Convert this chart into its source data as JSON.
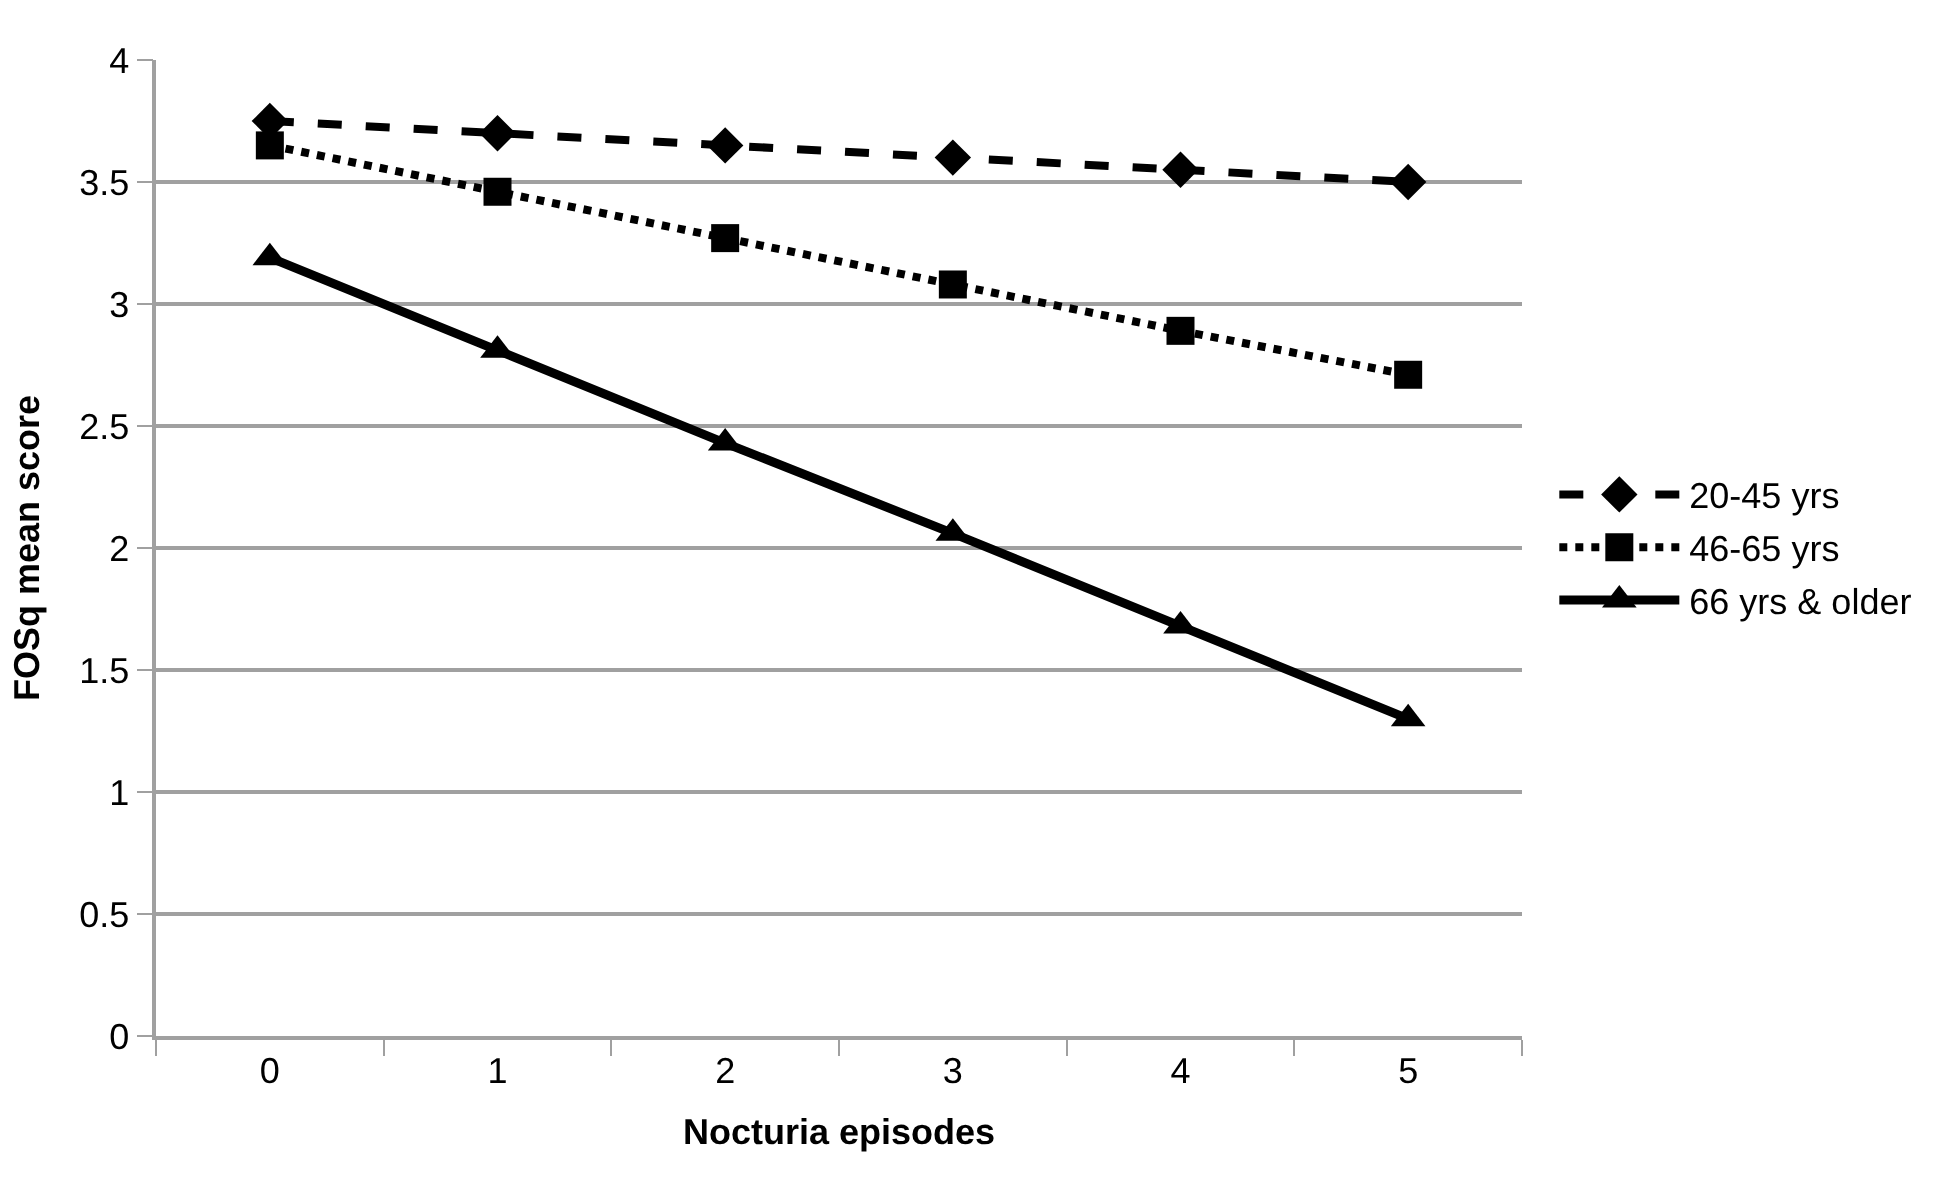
{
  "chart_data": {
    "type": "line",
    "xlabel": "Nocturia episodes",
    "ylabel": "FOSq mean score",
    "categories": [
      "0",
      "1",
      "2",
      "3",
      "4",
      "5"
    ],
    "series": [
      {
        "name": "20-45 yrs",
        "color": "#000000",
        "marker": "diamond",
        "line_style": "dashed",
        "values": [
          3.75,
          3.7,
          3.65,
          3.6,
          3.55,
          3.5
        ]
      },
      {
        "name": "46-65 yrs",
        "color": "#000000",
        "marker": "square",
        "line_style": "dotted",
        "values": [
          3.65,
          3.46,
          3.27,
          3.08,
          2.89,
          2.71
        ]
      },
      {
        "name": "66 yrs & older",
        "color": "#000000",
        "marker": "triangle",
        "line_style": "solid",
        "values": [
          3.19,
          2.81,
          2.43,
          2.06,
          1.68,
          1.3
        ]
      }
    ],
    "ylim": [
      0,
      4
    ],
    "yticks": [
      0,
      0.5,
      1,
      1.5,
      2,
      2.5,
      3,
      3.5,
      4
    ],
    "grid": "y",
    "legend": "right"
  }
}
